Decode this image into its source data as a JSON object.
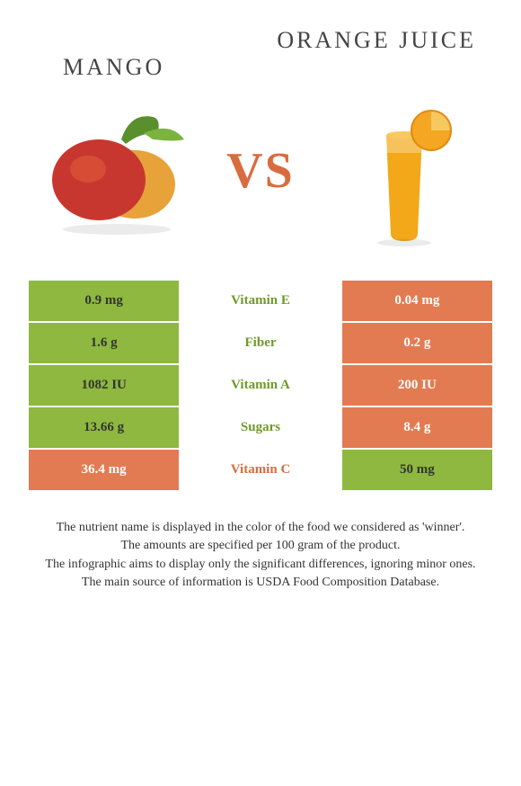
{
  "header": {
    "left_title": "Mango",
    "right_title": "Orange Juice",
    "vs_label": "VS"
  },
  "colors": {
    "green": "#8eb83f",
    "orange": "#e37b52",
    "name_green": "#6f9a28",
    "name_orange": "#d96c3f",
    "bg": "#ffffff"
  },
  "rows": [
    {
      "left_val": "0.9 mg",
      "name": "Vitamin E",
      "right_val": "0.04 mg",
      "winner": "left"
    },
    {
      "left_val": "1.6 g",
      "name": "Fiber",
      "right_val": "0.2 g",
      "winner": "left"
    },
    {
      "left_val": "1082 IU",
      "name": "Vitamin A",
      "right_val": "200 IU",
      "winner": "left"
    },
    {
      "left_val": "13.66 g",
      "name": "Sugars",
      "right_val": "8.4 g",
      "winner": "left"
    },
    {
      "left_val": "36.4 mg",
      "name": "Vitamin C",
      "right_val": "50 mg",
      "winner": "right"
    }
  ],
  "footer": {
    "line1": "The nutrient name is displayed in the color of the food we considered as 'winner'.",
    "line2": "The amounts are specified per 100 gram of the product.",
    "line3": "The infographic aims to display only the significant differences, ignoring minor ones.",
    "line4": "The main source of information is USDA Food Composition Database."
  }
}
